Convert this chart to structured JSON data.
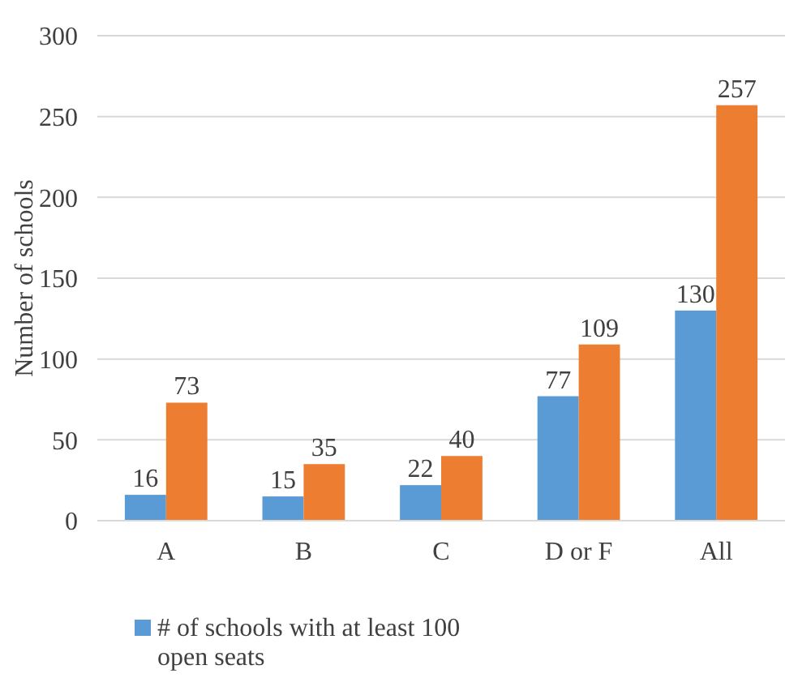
{
  "chart_data": {
    "type": "bar",
    "ylabel": "Number of schools",
    "categories": [
      "A",
      "B",
      "C",
      "D or F",
      "All"
    ],
    "series": [
      {
        "name": "# of schools with at least 100 open seats",
        "color": "#5b9bd5",
        "values": [
          16,
          15,
          22,
          77,
          130
        ]
      },
      {
        "color": "#ed7d31",
        "values": [
          73,
          35,
          40,
          109,
          257
        ]
      }
    ],
    "ylim": [
      0,
      300
    ],
    "yticks": [
      0,
      50,
      100,
      150,
      200,
      250,
      300
    ],
    "grid": "y",
    "data_labels": true,
    "legend": "bottom"
  }
}
